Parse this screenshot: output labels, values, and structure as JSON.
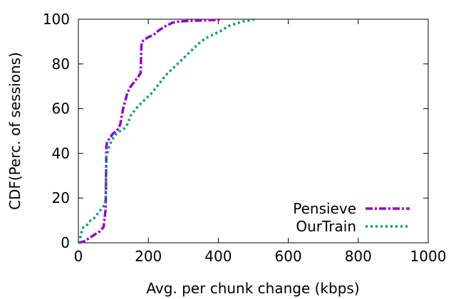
{
  "chart_data": {
    "type": "line",
    "title": "",
    "xlabel": "Avg. per chunk change (kbps)",
    "ylabel": "CDF(Perc. of sessions)",
    "xlim": [
      0,
      1000
    ],
    "ylim": [
      0,
      100
    ],
    "xticks": [
      0,
      200,
      400,
      600,
      800,
      1000
    ],
    "yticks": [
      0,
      20,
      40,
      60,
      80,
      100
    ],
    "grid": false,
    "legend_position": "bottom-right",
    "series": [
      {
        "name": "Pensieve",
        "color": "#9400d3",
        "style": "dash-dot",
        "x": [
          0,
          15,
          30,
          45,
          60,
          72,
          78,
          80,
          82,
          90,
          100,
          110,
          120,
          128,
          135,
          140,
          150,
          160,
          170,
          178,
          180,
          182,
          190,
          200,
          215,
          230,
          250,
          270,
          290,
          320,
          360,
          400,
          410
        ],
        "y": [
          0,
          0.5,
          2,
          3.5,
          5,
          7,
          15,
          43,
          45,
          47,
          49,
          50,
          53,
          60,
          64,
          67,
          70,
          72,
          74,
          76,
          88,
          90,
          91,
          92,
          93,
          95,
          97,
          98.5,
          99,
          99.3,
          99.5,
          99.7,
          100
        ]
      },
      {
        "name": "OurTrain",
        "color": "#009e73",
        "style": "dotted",
        "x": [
          0,
          5,
          8,
          10,
          15,
          25,
          35,
          45,
          55,
          65,
          75,
          78,
          80,
          85,
          90,
          100,
          110,
          120,
          130,
          140,
          150,
          170,
          190,
          210,
          230,
          250,
          270,
          290,
          310,
          330,
          350,
          370,
          390,
          410,
          430,
          450,
          470,
          490,
          505
        ],
        "y": [
          0,
          2,
          4,
          6,
          7,
          8,
          10,
          11,
          13,
          15,
          17,
          20,
          39,
          41,
          44,
          47,
          49,
          50,
          51,
          53,
          57,
          61,
          64,
          67,
          71,
          75,
          78,
          81,
          84,
          87,
          90,
          92,
          93.5,
          95,
          97,
          98,
          99,
          99.5,
          100
        ]
      }
    ]
  }
}
